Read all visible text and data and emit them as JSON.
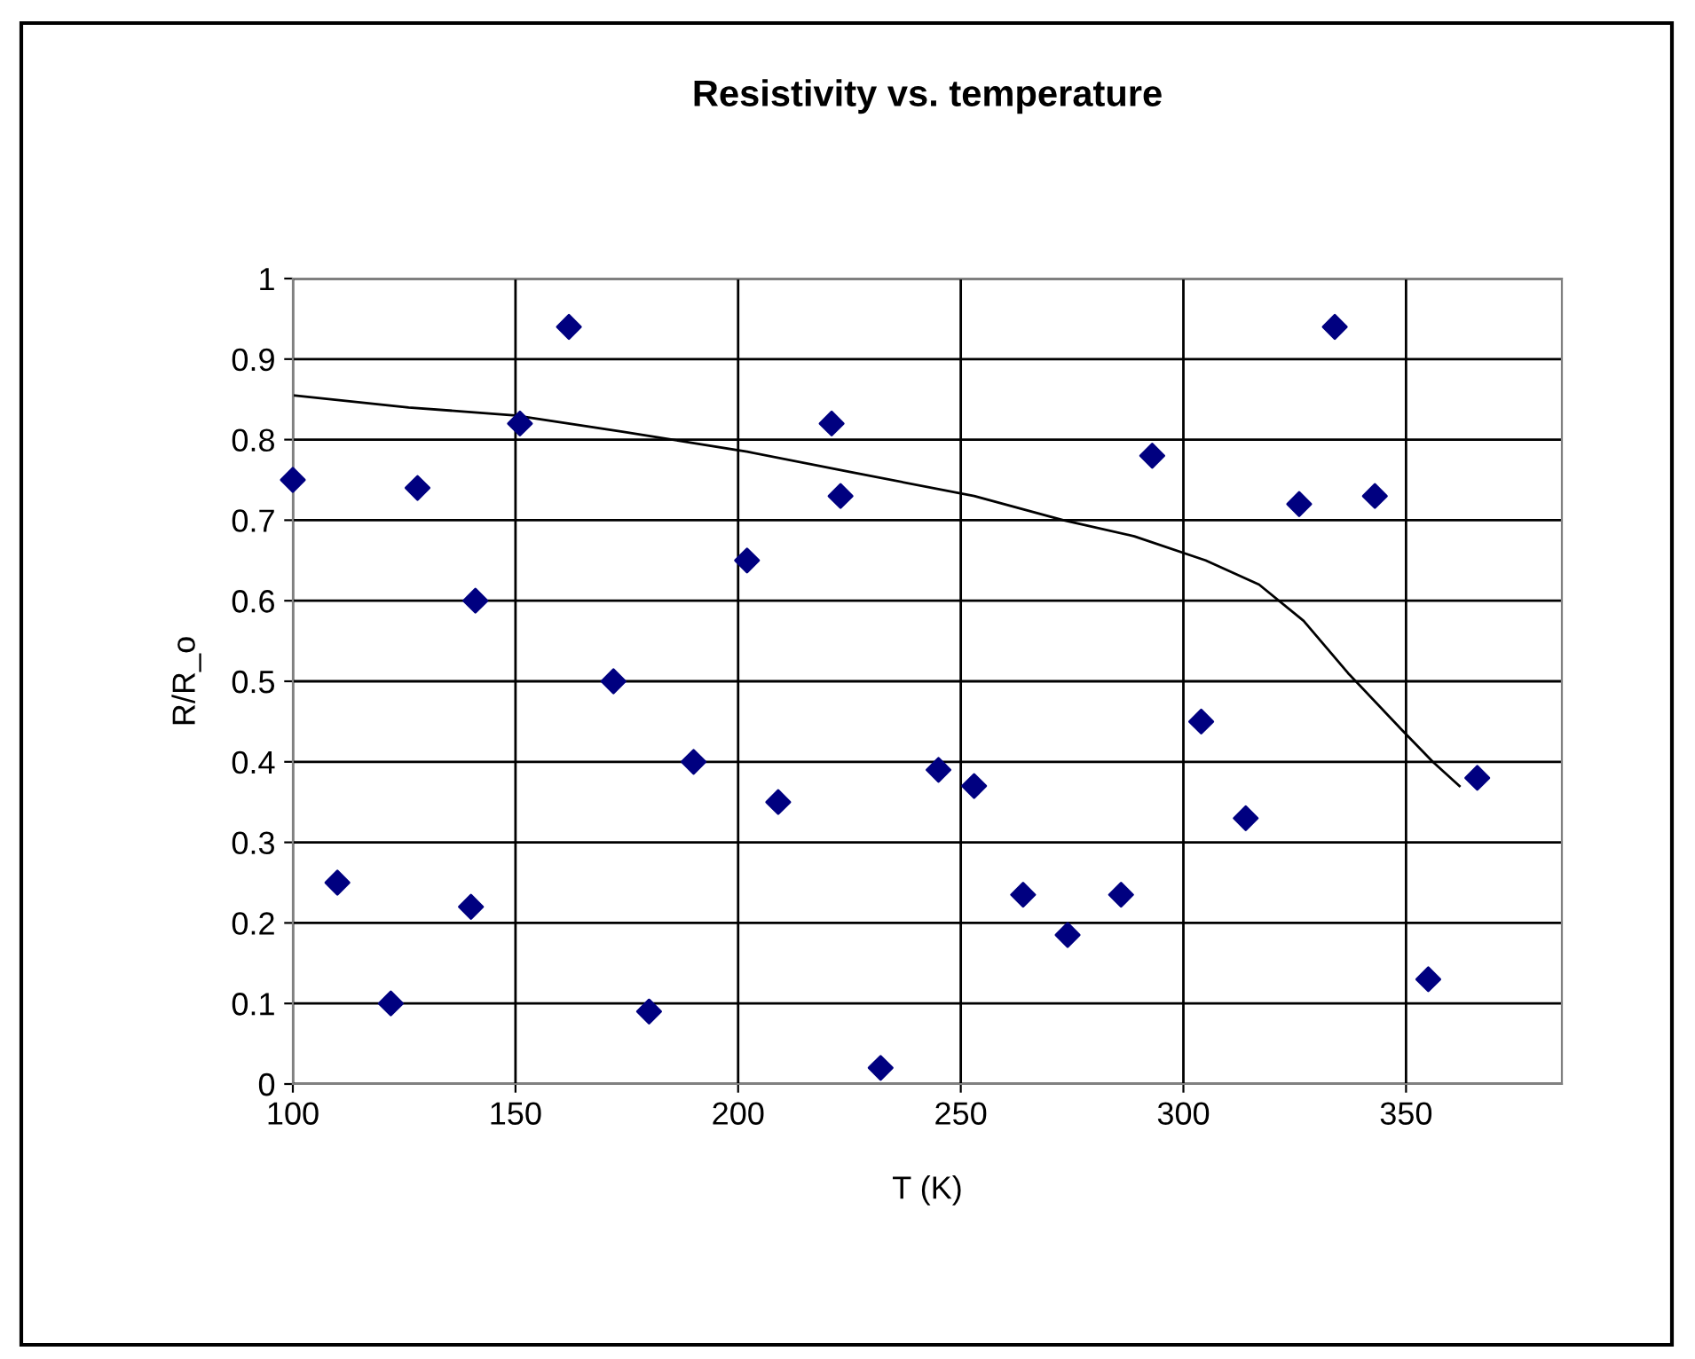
{
  "chart_data": {
    "type": "scatter",
    "title": "Resistivity vs. temperature",
    "xlabel": "T (K)",
    "ylabel": "R/R_o",
    "xlim": [
      100,
      385
    ],
    "ylim": [
      0,
      1
    ],
    "xticks": [
      100,
      150,
      200,
      250,
      300,
      350
    ],
    "yticks": [
      0,
      0.1,
      0.2,
      0.3,
      0.4,
      0.5,
      0.6,
      0.7,
      0.8,
      0.9,
      1
    ],
    "grid": true,
    "legend": false,
    "series": [
      {
        "color": "#000080",
        "marker": "diamond",
        "x": [
          100,
          110,
          122,
          128,
          141,
          140,
          151,
          162,
          172,
          180,
          190,
          202,
          209,
          221,
          223,
          232,
          245,
          253,
          264,
          274,
          286,
          293,
          304,
          314,
          326,
          334,
          343,
          355,
          366
        ],
        "values": [
          0.75,
          0.25,
          0.1,
          0.74,
          0.6,
          0.22,
          0.82,
          0.94,
          0.5,
          0.09,
          0.4,
          0.65,
          0.35,
          0.82,
          0.73,
          0.02,
          0.39,
          0.37,
          0.235,
          0.185,
          0.235,
          0.78,
          0.45,
          0.33,
          0.72,
          0.94,
          0.73,
          0.13,
          0.38
        ]
      },
      {
        "type": "line",
        "color": "#000000",
        "marker": "none",
        "line_style": "solid",
        "x": [
          100,
          126,
          150,
          174,
          202,
          225,
          253,
          273,
          289,
          305,
          317,
          327,
          337,
          349,
          356,
          362
        ],
        "values": [
          0.855,
          0.84,
          0.83,
          0.81,
          0.785,
          0.76,
          0.73,
          0.7,
          0.68,
          0.65,
          0.62,
          0.575,
          0.51,
          0.44,
          0.4,
          0.37
        ]
      }
    ]
  }
}
